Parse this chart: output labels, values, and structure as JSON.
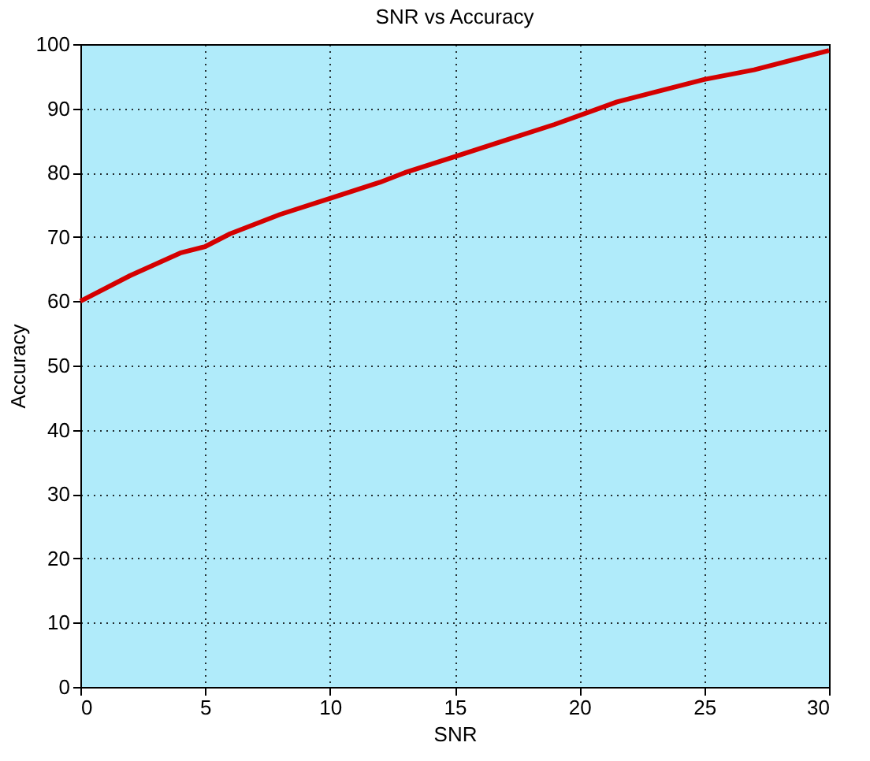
{
  "chart_data": {
    "type": "line",
    "title": "SNR vs Accuracy",
    "xlabel": "SNR",
    "ylabel": "Accuracy",
    "x": [
      0,
      2,
      4,
      5,
      6,
      8,
      10,
      12,
      13,
      15,
      17,
      19,
      21.5,
      23,
      25,
      27,
      30
    ],
    "series": [
      {
        "color": "#d40000",
        "values": [
          60,
          64,
          67.5,
          68.5,
          70.5,
          73.5,
          76,
          78.5,
          80,
          82.5,
          85,
          87.5,
          91,
          92.5,
          94.5,
          96,
          99
        ]
      }
    ],
    "xlim": [
      0,
      30
    ],
    "xticks": [
      0,
      5,
      10,
      15,
      20,
      25,
      30
    ],
    "ylim": [
      0,
      100
    ],
    "yticks": [
      0,
      10,
      20,
      30,
      40,
      50,
      60,
      70,
      80,
      90,
      100
    ],
    "grid": true,
    "marker": "none",
    "line_style": "solid"
  }
}
